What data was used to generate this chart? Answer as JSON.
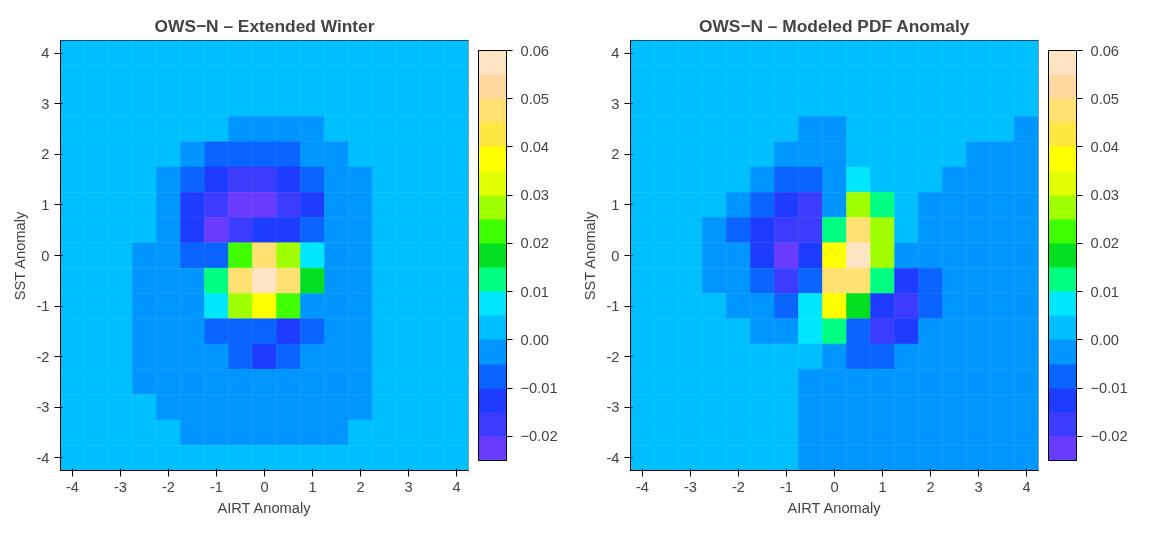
{
  "chart_data": [
    {
      "type": "heatmap",
      "title": "OWS−N – Extended Winter",
      "xlabel": "AIRT Anomaly",
      "ylabel": "SST Anomaly",
      "grid": false,
      "categories": [
        "-4",
        null,
        "-3",
        null,
        "-2",
        null,
        "-1",
        null,
        "0",
        null,
        "1",
        null,
        "2",
        null,
        "3",
        null,
        "4"
      ],
      "y_categories": [
        "4",
        null,
        "3",
        null,
        "2",
        null,
        "1",
        null,
        "0",
        null,
        "-1",
        null,
        "-2",
        null,
        "-3",
        null,
        "-4"
      ],
      "clim": [
        -0.025,
        0.06
      ],
      "cticks": [
        -0.02,
        -0.01,
        {
          "value": 0,
          "label": "0.00"
        },
        0.01,
        0.02,
        0.03,
        0.04,
        0.05,
        0.06
      ],
      "colors": [
        "#6a3cff",
        "#3c3cff",
        "#1e3cff",
        "#0a64ff",
        "#0096ff",
        "#00bfff",
        "#00e6ff",
        "#00ff80",
        "#00e020",
        "#40ff00",
        "#a0ff00",
        "#e0ff00",
        "#ffff00",
        "#ffe640",
        "#ffe070",
        "#ffd8a0",
        "#ffe4c4"
      ],
      "cells": [
        [
          0.0025,
          0.0025,
          0.0025,
          0.0025,
          0.0025,
          0.0025,
          0.0025,
          0.0025,
          0.0025,
          0.0025,
          0.0025,
          0.0025,
          0.0025,
          0.0025,
          0.0025,
          0.0025,
          0.0025
        ],
        [
          0.0025,
          0.0025,
          0.0025,
          0.0025,
          0.0025,
          0.0025,
          0.0025,
          0.0025,
          0.0025,
          0.0025,
          0.0025,
          0.0025,
          0.0025,
          0.0025,
          0.0025,
          0.0025,
          0.0025
        ],
        [
          0.0025,
          0.0025,
          0.0025,
          0.0025,
          0.0025,
          0.0025,
          0.0025,
          0.0025,
          0.0025,
          0.0025,
          0.0025,
          0.0025,
          0.0025,
          0.0025,
          0.0025,
          0.0025,
          0.0025
        ],
        [
          0.0025,
          0.0025,
          0.0025,
          0.0025,
          0.0025,
          0.0025,
          0.0025,
          -0.0025,
          -0.0025,
          -0.0025,
          -0.0025,
          0.0025,
          0.0025,
          0.0025,
          0.0025,
          0.0025,
          0.0025
        ],
        [
          0.0025,
          0.0025,
          0.0025,
          0.0025,
          0.0025,
          -0.0025,
          -0.0075,
          -0.0075,
          -0.0075,
          -0.0075,
          -0.0025,
          -0.0025,
          0.0025,
          0.0025,
          0.0025,
          0.0025,
          0.0025
        ],
        [
          0.0025,
          0.0025,
          0.0025,
          0.0025,
          -0.0025,
          -0.0075,
          -0.0125,
          -0.0175,
          -0.0175,
          -0.0125,
          -0.0075,
          -0.0025,
          -0.0025,
          0.0025,
          0.0025,
          0.0025,
          0.0025
        ],
        [
          0.0025,
          0.0025,
          0.0025,
          0.0025,
          -0.0025,
          -0.0125,
          -0.0175,
          -0.0225,
          -0.0225,
          -0.0175,
          -0.0125,
          -0.0025,
          -0.0025,
          0.0025,
          0.0025,
          0.0025,
          0.0025
        ],
        [
          0.0025,
          0.0025,
          0.0025,
          0.0025,
          -0.0025,
          -0.0125,
          -0.0225,
          -0.0175,
          -0.0125,
          -0.0125,
          -0.0075,
          -0.0025,
          -0.0025,
          0.0025,
          0.0025,
          0.0025,
          0.0025
        ],
        [
          0.0025,
          0.0025,
          0.0025,
          -0.0025,
          -0.0025,
          -0.0075,
          -0.0075,
          0.0225,
          0.0475,
          0.0275,
          0.0075,
          -0.0025,
          -0.0025,
          0.0025,
          0.0025,
          0.0025,
          0.0025
        ],
        [
          0.0025,
          0.0025,
          0.0025,
          -0.0025,
          -0.0025,
          -0.0025,
          0.0125,
          0.0475,
          0.0575,
          0.0475,
          0.0175,
          -0.0025,
          -0.0025,
          0.0025,
          0.0025,
          0.0025,
          0.0025
        ],
        [
          0.0025,
          0.0025,
          0.0025,
          -0.0025,
          -0.0025,
          -0.0025,
          0.0075,
          0.0275,
          0.0375,
          0.0225,
          -0.0025,
          -0.0025,
          -0.0025,
          0.0025,
          0.0025,
          0.0025,
          0.0025
        ],
        [
          0.0025,
          0.0025,
          0.0025,
          -0.0025,
          -0.0025,
          -0.0025,
          -0.0075,
          -0.0075,
          -0.0075,
          -0.0125,
          -0.0075,
          -0.0025,
          -0.0025,
          0.0025,
          0.0025,
          0.0025,
          0.0025
        ],
        [
          0.0025,
          0.0025,
          0.0025,
          -0.0025,
          -0.0025,
          -0.0025,
          -0.0025,
          -0.0075,
          -0.0125,
          -0.0075,
          -0.0025,
          -0.0025,
          -0.0025,
          0.0025,
          0.0025,
          0.0025,
          0.0025
        ],
        [
          0.0025,
          0.0025,
          0.0025,
          -0.0025,
          -0.0025,
          -0.0025,
          -0.0025,
          -0.0025,
          -0.0025,
          -0.0025,
          -0.0025,
          -0.0025,
          -0.0025,
          0.0025,
          0.0025,
          0.0025,
          0.0025
        ],
        [
          0.0025,
          0.0025,
          0.0025,
          0.0025,
          -0.0025,
          -0.0025,
          -0.0025,
          -0.0025,
          -0.0025,
          -0.0025,
          -0.0025,
          -0.0025,
          -0.0025,
          0.0025,
          0.0025,
          0.0025,
          0.0025
        ],
        [
          0.0025,
          0.0025,
          0.0025,
          0.0025,
          0.0025,
          -0.0025,
          -0.0025,
          -0.0025,
          -0.0025,
          -0.0025,
          -0.0025,
          -0.0025,
          0.0025,
          0.0025,
          0.0025,
          0.0025,
          0.0025
        ],
        [
          0.0025,
          0.0025,
          0.0025,
          0.0025,
          0.0025,
          0.0025,
          0.0025,
          0.0025,
          0.0025,
          0.0025,
          0.0025,
          0.0025,
          0.0025,
          0.0025,
          0.0025,
          0.0025,
          0.0025
        ]
      ]
    },
    {
      "type": "heatmap",
      "title": "OWS−N – Modeled PDF Anomaly",
      "xlabel": "AIRT Anomaly",
      "ylabel": "SST Anomaly",
      "grid": false,
      "categories": [
        "-4",
        null,
        "-3",
        null,
        "-2",
        null,
        "-1",
        null,
        "0",
        null,
        "1",
        null,
        "2",
        null,
        "3",
        null,
        "4"
      ],
      "y_categories": [
        "4",
        null,
        "3",
        null,
        "2",
        null,
        "1",
        null,
        "0",
        null,
        "-1",
        null,
        "-2",
        null,
        "-3",
        null,
        "-4"
      ],
      "clim": [
        -0.025,
        0.06
      ],
      "cticks": [
        -0.02,
        -0.01,
        {
          "value": 0,
          "label": "0.00"
        },
        0.01,
        0.02,
        0.03,
        0.04,
        0.05,
        0.06
      ],
      "colors": [
        "#6a3cff",
        "#3c3cff",
        "#1e3cff",
        "#0a64ff",
        "#0096ff",
        "#00bfff",
        "#00e6ff",
        "#00ff80",
        "#00e020",
        "#40ff00",
        "#a0ff00",
        "#e0ff00",
        "#ffff00",
        "#ffe640",
        "#ffe070",
        "#ffd8a0",
        "#ffe4c4"
      ],
      "cells": [
        [
          0.0025,
          0.0025,
          0.0025,
          0.0025,
          0.0025,
          0.0025,
          0.0025,
          0.0025,
          0.0025,
          0.0025,
          0.0025,
          0.0025,
          0.0025,
          0.0025,
          0.0025,
          0.0025,
          0.0025
        ],
        [
          0.0025,
          0.0025,
          0.0025,
          0.0025,
          0.0025,
          0.0025,
          0.0025,
          0.0025,
          0.0025,
          0.0025,
          0.0025,
          0.0025,
          0.0025,
          0.0025,
          0.0025,
          0.0025,
          0.0025
        ],
        [
          0.0025,
          0.0025,
          0.0025,
          0.0025,
          0.0025,
          0.0025,
          0.0025,
          0.0025,
          0.0025,
          0.0025,
          0.0025,
          0.0025,
          0.0025,
          0.0025,
          0.0025,
          0.0025,
          0.0025
        ],
        [
          0.0025,
          0.0025,
          0.0025,
          0.0025,
          0.0025,
          0.0025,
          0.0025,
          -0.0025,
          -0.0025,
          0.0025,
          0.0025,
          0.0025,
          0.0025,
          0.0025,
          0.0025,
          0.0025,
          -0.0025
        ],
        [
          0.0025,
          0.0025,
          0.0025,
          0.0025,
          0.0025,
          0.0025,
          -0.0025,
          -0.0025,
          -0.0025,
          0.0025,
          0.0025,
          0.0025,
          0.0025,
          0.0025,
          -0.0025,
          -0.0025,
          -0.0025
        ],
        [
          0.0025,
          0.0025,
          0.0025,
          0.0025,
          0.0025,
          -0.0025,
          -0.0075,
          -0.0075,
          -0.0025,
          0.0075,
          0.0025,
          0.0025,
          0.0025,
          -0.0025,
          -0.0025,
          -0.0025,
          -0.0025
        ],
        [
          0.0025,
          0.0025,
          0.0025,
          0.0025,
          -0.0025,
          -0.0075,
          -0.0125,
          -0.0175,
          -0.0025,
          0.0275,
          0.0125,
          0.0025,
          -0.0025,
          -0.0025,
          -0.0025,
          -0.0025,
          -0.0025
        ],
        [
          0.0025,
          0.0025,
          0.0025,
          -0.0025,
          -0.0075,
          -0.0125,
          -0.0175,
          -0.0175,
          0.0125,
          0.0475,
          0.0275,
          0.0025,
          -0.0025,
          -0.0025,
          -0.0025,
          -0.0025,
          -0.0025
        ],
        [
          0.0025,
          0.0025,
          0.0025,
          -0.0025,
          -0.0025,
          -0.0125,
          -0.0225,
          -0.0125,
          0.0375,
          0.0575,
          0.0275,
          -0.0025,
          -0.0025,
          -0.0025,
          -0.0025,
          -0.0025,
          -0.0025
        ],
        [
          0.0025,
          0.0025,
          0.0025,
          -0.0025,
          -0.0025,
          -0.0075,
          -0.0175,
          -0.0075,
          0.0475,
          0.0475,
          0.0125,
          -0.0125,
          -0.0075,
          -0.0025,
          -0.0025,
          -0.0025,
          -0.0025
        ],
        [
          0.0025,
          0.0025,
          0.0025,
          0.0025,
          -0.0025,
          -0.0025,
          -0.0075,
          0.0075,
          0.0375,
          0.0175,
          -0.0125,
          -0.0175,
          -0.0075,
          -0.0025,
          -0.0025,
          -0.0025,
          -0.0025
        ],
        [
          0.0025,
          0.0025,
          0.0025,
          0.0025,
          0.0025,
          -0.0025,
          -0.0025,
          0.0075,
          0.0125,
          -0.0075,
          -0.0175,
          -0.0125,
          -0.0025,
          -0.0025,
          -0.0025,
          -0.0025,
          -0.0025
        ],
        [
          0.0025,
          0.0025,
          0.0025,
          0.0025,
          0.0025,
          0.0025,
          0.0025,
          0.0025,
          -0.0025,
          -0.0075,
          -0.0075,
          -0.0025,
          -0.0025,
          -0.0025,
          -0.0025,
          -0.0025,
          -0.0025
        ],
        [
          0.0025,
          0.0025,
          0.0025,
          0.0025,
          0.0025,
          0.0025,
          0.0025,
          -0.0025,
          -0.0025,
          -0.0025,
          -0.0025,
          -0.0025,
          -0.0025,
          -0.0025,
          -0.0025,
          -0.0025,
          -0.0025
        ],
        [
          0.0025,
          0.0025,
          0.0025,
          0.0025,
          0.0025,
          0.0025,
          0.0025,
          -0.0025,
          -0.0025,
          -0.0025,
          -0.0025,
          -0.0025,
          -0.0025,
          -0.0025,
          -0.0025,
          -0.0025,
          -0.0025
        ],
        [
          0.0025,
          0.0025,
          0.0025,
          0.0025,
          0.0025,
          0.0025,
          0.0025,
          -0.0025,
          -0.0025,
          -0.0025,
          -0.0025,
          -0.0025,
          -0.0025,
          -0.0025,
          -0.0025,
          -0.0025,
          -0.0025
        ],
        [
          0.0025,
          0.0025,
          0.0025,
          0.0025,
          0.0025,
          0.0025,
          0.0025,
          -0.0025,
          -0.0025,
          -0.0025,
          -0.0025,
          -0.0025,
          -0.0025,
          -0.0025,
          -0.0025,
          -0.0025,
          -0.0025
        ]
      ]
    }
  ]
}
